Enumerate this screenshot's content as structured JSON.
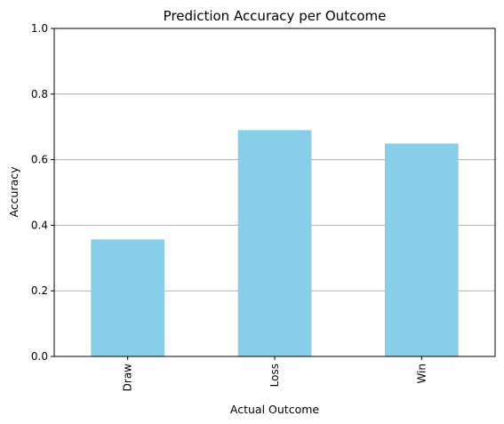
{
  "chart_data": {
    "type": "bar",
    "title": "Prediction Accuracy per Outcome",
    "xlabel": "Actual Outcome",
    "ylabel": "Accuracy",
    "categories": [
      "Draw",
      "Loss",
      "Win"
    ],
    "values": [
      0.357,
      0.69,
      0.649
    ],
    "ylim": [
      0,
      1
    ],
    "yticks": [
      "0.0",
      "0.2",
      "0.4",
      "0.6",
      "0.8",
      "1.0"
    ],
    "grid": "y",
    "bar_color": "#87ceeb",
    "gridline_color": "#b0b0b0",
    "x_tick_rotation": "vertical"
  }
}
